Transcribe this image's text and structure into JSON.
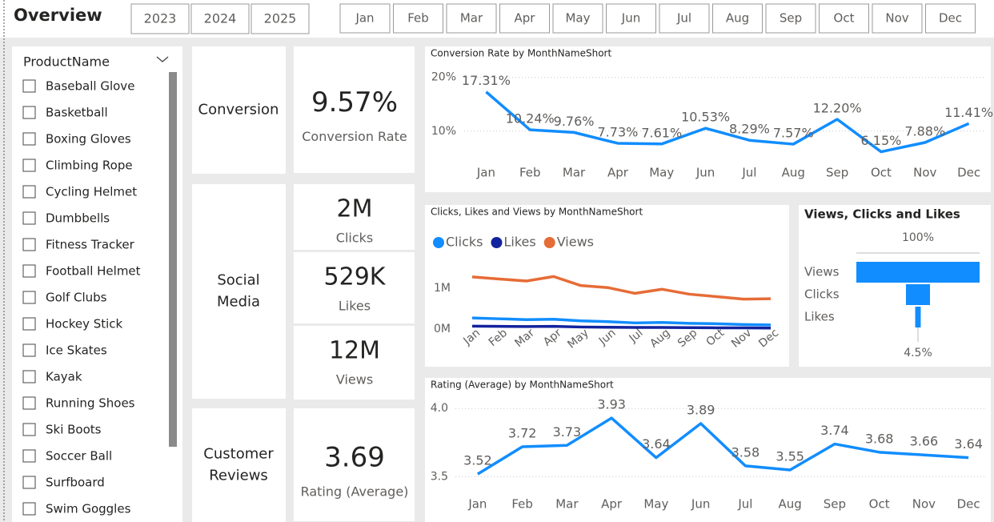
{
  "header": {
    "title": "Overview",
    "years": [
      "2023",
      "2024",
      "2025"
    ],
    "months": [
      "Jan",
      "Feb",
      "Mar",
      "Apr",
      "May",
      "Jun",
      "Jul",
      "Aug",
      "Sep",
      "Oct",
      "Nov",
      "Dec"
    ]
  },
  "slicer": {
    "title": "ProductName",
    "items": [
      "Baseball Glove",
      "Basketball",
      "Boxing Gloves",
      "Climbing Rope",
      "Cycling Helmet",
      "Dumbbells",
      "Fitness Tracker",
      "Football Helmet",
      "Golf Clubs",
      "Hockey Stick",
      "Ice Skates",
      "Kayak",
      "Running Shoes",
      "Ski Boots",
      "Soccer Ball",
      "Surfboard",
      "Swim Goggles"
    ]
  },
  "cards": [
    {
      "label": "Conversion",
      "cards": [
        {
          "value": "9.57%",
          "label": "Conversion Rate"
        }
      ]
    },
    {
      "label": "Social Media",
      "cards": [
        {
          "value": "2M",
          "label": "Clicks"
        },
        {
          "value": "529K",
          "label": "Likes"
        },
        {
          "value": "12M",
          "label": "Views"
        }
      ]
    },
    {
      "label": "Customer Reviews",
      "cards": [
        {
          "value": "3.69",
          "label": "Rating (Average)"
        }
      ]
    }
  ],
  "chart_data": [
    {
      "type": "line",
      "title": "Conversion Rate by MonthNameShort",
      "categories": [
        "Jan",
        "Feb",
        "Mar",
        "Apr",
        "May",
        "Jun",
        "Jul",
        "Aug",
        "Sep",
        "Oct",
        "Nov",
        "Dec"
      ],
      "values": [
        17.31,
        10.24,
        9.76,
        7.73,
        7.61,
        10.53,
        8.29,
        7.57,
        12.2,
        6.15,
        7.88,
        11.41
      ],
      "value_labels": [
        "17.31%",
        "10.24%",
        "9.76%",
        "7.73%",
        "7.61%",
        "10.53%",
        "8.29%",
        "7.57%",
        "12.20%",
        "6.15%",
        "7.88%",
        "11.41%"
      ],
      "color": "#118dff",
      "ylim": [
        4,
        21
      ],
      "yticks": [
        {
          "value": 10,
          "label": "10%"
        },
        {
          "value": 20,
          "label": "20%"
        }
      ],
      "grid": true
    },
    {
      "type": "line",
      "title": "Clicks, Likes and Views by MonthNameShort",
      "categories": [
        "Jan",
        "Feb",
        "Mar",
        "Apr",
        "May",
        "Jun",
        "Jul",
        "Aug",
        "Sep",
        "Oct",
        "Nov",
        "Dec"
      ],
      "series": [
        {
          "name": "Clicks",
          "color": "#118dff",
          "values": [
            270000,
            250000,
            230000,
            240000,
            200000,
            180000,
            150000,
            160000,
            140000,
            130000,
            110000,
            100000
          ]
        },
        {
          "name": "Likes",
          "color": "#12239e",
          "values": [
            70000,
            65000,
            60000,
            65000,
            50000,
            45000,
            40000,
            40000,
            35000,
            30000,
            30000,
            25000
          ]
        },
        {
          "name": "Views",
          "color": "#e66c37",
          "values": [
            1270000,
            1220000,
            1170000,
            1280000,
            1060000,
            1010000,
            870000,
            970000,
            850000,
            790000,
            730000,
            740000
          ]
        }
      ],
      "ylim": [
        0,
        1600000
      ],
      "yticks": [
        {
          "value": 0,
          "label": "0M"
        },
        {
          "value": 1000000,
          "label": "1M"
        }
      ],
      "grid": false,
      "legend": "top-left"
    },
    {
      "type": "funnel",
      "title": "Views, Clicks and Likes",
      "categories": [
        "Views",
        "Clicks",
        "Likes"
      ],
      "values": [
        100,
        19.5,
        4.5
      ],
      "value_labels": [
        "100%",
        null,
        "4.5%"
      ],
      "color": "#118dff"
    },
    {
      "type": "line",
      "title": "Rating (Average) by MonthNameShort",
      "categories": [
        "Jan",
        "Feb",
        "Mar",
        "Apr",
        "May",
        "Jun",
        "Jul",
        "Aug",
        "Sep",
        "Oct",
        "Nov",
        "Dec"
      ],
      "values": [
        3.52,
        3.72,
        3.73,
        3.93,
        3.64,
        3.89,
        3.58,
        3.55,
        3.74,
        3.68,
        3.66,
        3.64
      ],
      "color": "#118dff",
      "ylim": [
        3.38,
        4.06
      ],
      "yticks": [
        3.5,
        {
          "value": 4,
          "label": "4.0"
        }
      ],
      "grid": true
    }
  ]
}
